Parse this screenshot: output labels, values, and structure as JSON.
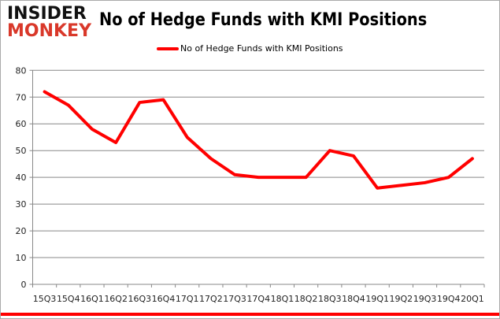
{
  "logo": {
    "line1": "INSIDER",
    "line2": "MONKEY"
  },
  "chart_data": {
    "type": "line",
    "title": "No of Hedge Funds with KMI Positions",
    "categories": [
      "15Q3",
      "15Q4",
      "16Q1",
      "16Q2",
      "16Q3",
      "16Q4",
      "17Q1",
      "17Q2",
      "17Q3",
      "17Q4",
      "18Q1",
      "18Q2",
      "18Q3",
      "18Q4",
      "19Q1",
      "19Q2",
      "19Q3",
      "19Q4",
      "20Q1"
    ],
    "series": [
      {
        "name": "No of Hedge Funds with KMI Positions",
        "values": [
          72,
          67,
          58,
          53,
          68,
          69,
          55,
          47,
          41,
          40,
          40,
          40,
          50,
          48,
          36,
          37,
          38,
          40,
          47
        ],
        "color": "#ff0000"
      }
    ],
    "ylim": [
      0,
      80
    ],
    "yticks": [
      0,
      10,
      20,
      30,
      40,
      50,
      60,
      70,
      80
    ],
    "grid": true,
    "legend": "top-center"
  }
}
